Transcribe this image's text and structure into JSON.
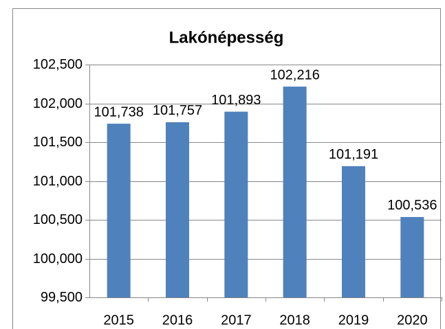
{
  "chart_data": {
    "type": "bar",
    "title": "Lakónépesség",
    "categories": [
      "2015",
      "2016",
      "2017",
      "2018",
      "2019",
      "2020"
    ],
    "values": [
      101738,
      101757,
      101893,
      102216,
      101191,
      100536
    ],
    "value_labels": [
      "101,738",
      "101,757",
      "101,893",
      "102,216",
      "101,191",
      "100,536"
    ],
    "color": "#4f81bd",
    "ylim": [
      99500,
      102500
    ],
    "yticks": [
      {
        "value": 99500,
        "label": "99,500"
      },
      {
        "value": 100000,
        "label": "100,000"
      },
      {
        "value": 100500,
        "label": "100,500"
      },
      {
        "value": 101000,
        "label": "101,000"
      },
      {
        "value": 101500,
        "label": "101,500"
      },
      {
        "value": 102000,
        "label": "102,000"
      },
      {
        "value": 102500,
        "label": "102,500"
      }
    ],
    "grid": true
  }
}
